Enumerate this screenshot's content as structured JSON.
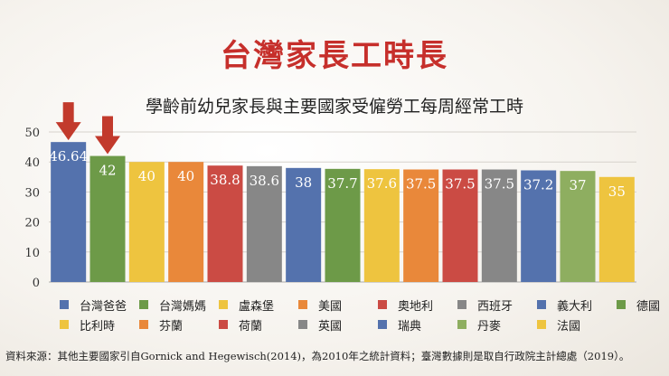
{
  "page": {
    "title": "台灣家長工時長",
    "subtitle": "學齡前幼兒家長與主要國家受僱勞工每周經常工時",
    "source": "資料來源：其他主要國家引自Gornick and Hegewisch(2014)，為2010年之統計資料；臺灣數據則是取自行政院主計總處（2019）。"
  },
  "chart_data": {
    "type": "bar",
    "categories": [
      "台灣爸爸",
      "台灣媽媽",
      "盧森堡",
      "美國",
      "奧地利",
      "西班牙",
      "義大利",
      "德國",
      "比利時",
      "芬蘭",
      "荷蘭",
      "英國",
      "瑞典",
      "丹麥",
      "法國"
    ],
    "values": [
      46.64,
      42,
      40,
      40,
      38.8,
      38.6,
      38,
      37.7,
      37.6,
      37.5,
      37.5,
      37.5,
      37.2,
      37,
      35
    ],
    "data_labels": [
      "46.64",
      "42",
      "40",
      "40",
      "38.8",
      "38.6",
      "38",
      "37.7",
      "37.6",
      "37.5",
      "37.5",
      "37.5",
      "37.2",
      "37",
      "35"
    ],
    "colors": [
      "#5472ad",
      "#6d9a48",
      "#eec43f",
      "#e9883a",
      "#cb4b44",
      "#878787",
      "#5472ad",
      "#6d9a48",
      "#eec43f",
      "#e9883a",
      "#cb4b44",
      "#878787",
      "#5472ad",
      "#8eae60",
      "#eec43f"
    ],
    "ylim": [
      0,
      50
    ],
    "yticks": [
      "0",
      "10",
      "20",
      "30",
      "40",
      "50"
    ],
    "grid": true,
    "legend_position": "bottom",
    "highlight_arrows_on": [
      "台灣爸爸",
      "台灣媽媽"
    ],
    "arrow_color": "#c23a2c"
  }
}
